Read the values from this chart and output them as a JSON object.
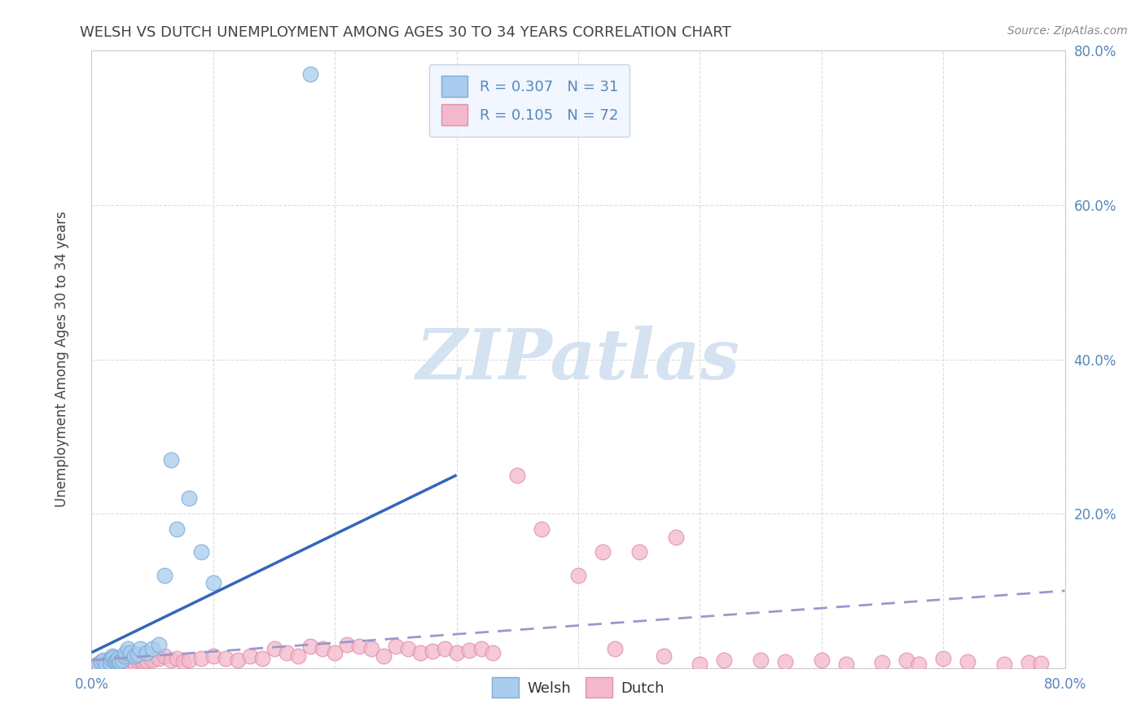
{
  "title": "WELSH VS DUTCH UNEMPLOYMENT AMONG AGES 30 TO 34 YEARS CORRELATION CHART",
  "source": "Source: ZipAtlas.com",
  "ylabel": "Unemployment Among Ages 30 to 34 years",
  "xlim": [
    0.0,
    0.8
  ],
  "ylim": [
    0.0,
    0.8
  ],
  "xticks": [
    0.0,
    0.1,
    0.2,
    0.3,
    0.4,
    0.5,
    0.6,
    0.7,
    0.8
  ],
  "yticks": [
    0.0,
    0.2,
    0.4,
    0.6,
    0.8
  ],
  "ytick_labels_right": [
    "",
    "20.0%",
    "40.0%",
    "60.0%",
    "80.0%"
  ],
  "xtick_labels": [
    "0.0%",
    "",
    "",
    "",
    "",
    "",
    "",
    "",
    "80.0%"
  ],
  "welsh_R": 0.307,
  "welsh_N": 31,
  "dutch_R": 0.105,
  "dutch_N": 72,
  "welsh_color": "#aaccee",
  "dutch_color": "#f4b8cc",
  "welsh_edge_color": "#7aadd4",
  "dutch_edge_color": "#e090a8",
  "welsh_line_color": "#3366bb",
  "dutch_line_color": "#9999cc",
  "watermark_color": "#d0dff0",
  "background_color": "#ffffff",
  "grid_color": "#dddddd",
  "title_color": "#444444",
  "axis_label_color": "#444444",
  "tick_color": "#5588bb",
  "legend_bg_color": "#eef4ff",
  "legend_edge_color": "#bbccdd",
  "welsh_x": [
    0.005,
    0.008,
    0.01,
    0.012,
    0.015,
    0.016,
    0.017,
    0.018,
    0.019,
    0.02,
    0.021,
    0.022,
    0.023,
    0.025,
    0.027,
    0.028,
    0.03,
    0.032,
    0.035,
    0.038,
    0.04,
    0.045,
    0.05,
    0.055,
    0.06,
    0.065,
    0.07,
    0.08,
    0.09,
    0.1,
    0.18
  ],
  "welsh_y": [
    0.005,
    0.008,
    0.01,
    0.005,
    0.007,
    0.012,
    0.015,
    0.013,
    0.008,
    0.009,
    0.01,
    0.012,
    0.008,
    0.01,
    0.015,
    0.02,
    0.025,
    0.02,
    0.015,
    0.018,
    0.025,
    0.02,
    0.025,
    0.03,
    0.12,
    0.27,
    0.18,
    0.22,
    0.15,
    0.11,
    0.77
  ],
  "dutch_x": [
    0.005,
    0.008,
    0.01,
    0.012,
    0.015,
    0.017,
    0.018,
    0.02,
    0.022,
    0.025,
    0.027,
    0.03,
    0.032,
    0.035,
    0.038,
    0.04,
    0.042,
    0.045,
    0.05,
    0.055,
    0.06,
    0.065,
    0.07,
    0.075,
    0.08,
    0.09,
    0.1,
    0.11,
    0.12,
    0.13,
    0.14,
    0.15,
    0.16,
    0.17,
    0.18,
    0.19,
    0.2,
    0.21,
    0.22,
    0.23,
    0.24,
    0.25,
    0.26,
    0.27,
    0.28,
    0.29,
    0.3,
    0.31,
    0.32,
    0.33,
    0.35,
    0.37,
    0.4,
    0.42,
    0.43,
    0.45,
    0.47,
    0.48,
    0.5,
    0.52,
    0.55,
    0.57,
    0.6,
    0.62,
    0.65,
    0.67,
    0.68,
    0.7,
    0.72,
    0.75,
    0.77,
    0.78
  ],
  "dutch_y": [
    0.005,
    0.007,
    0.008,
    0.006,
    0.005,
    0.007,
    0.009,
    0.01,
    0.008,
    0.007,
    0.006,
    0.008,
    0.005,
    0.007,
    0.01,
    0.012,
    0.008,
    0.009,
    0.01,
    0.012,
    0.015,
    0.01,
    0.012,
    0.008,
    0.01,
    0.012,
    0.015,
    0.012,
    0.01,
    0.015,
    0.012,
    0.025,
    0.02,
    0.015,
    0.028,
    0.025,
    0.02,
    0.03,
    0.028,
    0.025,
    0.015,
    0.028,
    0.025,
    0.02,
    0.022,
    0.025,
    0.02,
    0.023,
    0.025,
    0.02,
    0.25,
    0.18,
    0.12,
    0.15,
    0.025,
    0.15,
    0.015,
    0.17,
    0.005,
    0.01,
    0.01,
    0.008,
    0.01,
    0.005,
    0.007,
    0.01,
    0.005,
    0.012,
    0.008,
    0.005,
    0.007,
    0.006
  ],
  "welsh_line_x": [
    0.0,
    0.3
  ],
  "welsh_line_y_start": 0.02,
  "welsh_line_y_end": 0.25,
  "dutch_line_x": [
    0.0,
    0.8
  ],
  "dutch_line_y_start": 0.01,
  "dutch_line_y_end": 0.1
}
